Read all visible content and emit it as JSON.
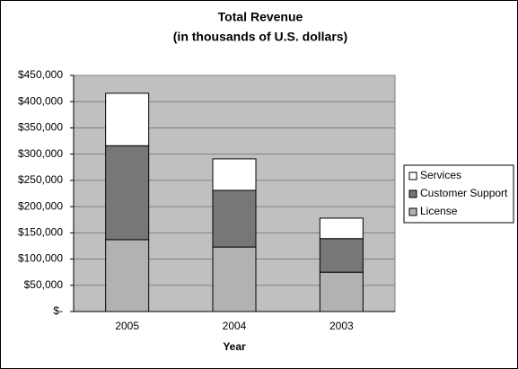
{
  "chart_data": {
    "type": "stacked-bar",
    "title": "Total Revenue",
    "subtitle": "(in thousands of U.S. dollars)",
    "x_label": "Year",
    "categories": [
      "2005",
      "2004",
      "2003"
    ],
    "series": [
      {
        "name": "License",
        "color": "#b2b2b2",
        "values": [
          137000,
          123000,
          75000
        ]
      },
      {
        "name": "Customer Support",
        "color": "#777777",
        "values": [
          179000,
          108000,
          64000
        ]
      },
      {
        "name": "Services",
        "color": "#ffffff",
        "values": [
          100000,
          60000,
          39000
        ]
      }
    ],
    "ylim": [
      0,
      450000
    ],
    "yticks": [
      {
        "value": 0,
        "label": "$-"
      },
      {
        "value": 50000,
        "label": "$50,000"
      },
      {
        "value": 100000,
        "label": "$100,000"
      },
      {
        "value": 150000,
        "label": "$150,000"
      },
      {
        "value": 200000,
        "label": "$200,000"
      },
      {
        "value": 250000,
        "label": "$250,000"
      },
      {
        "value": 300000,
        "label": "$300,000"
      },
      {
        "value": 350000,
        "label": "$350,000"
      },
      {
        "value": 400000,
        "label": "$400,000"
      },
      {
        "value": 450000,
        "label": "$450,000"
      }
    ],
    "grid": true,
    "plot_background": "#c0c0c0",
    "legend": "right"
  }
}
